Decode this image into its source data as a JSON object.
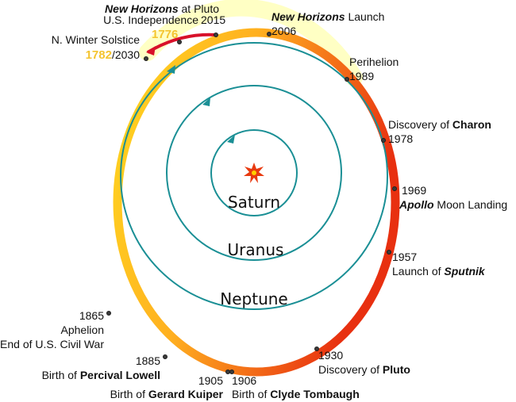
{
  "colors": {
    "orbit": "#1a8f95",
    "pluto_orbit_start": "#ffd820",
    "pluto_orbit_mid": "#ffb020",
    "pluto_orbit_end": "#e83010",
    "glow": "#ffffb0",
    "sun": "#e83a10",
    "arc_red": "#d8102a",
    "gold_text": "#f4c430"
  },
  "planets": {
    "saturn": "Saturn",
    "uranus": "Uranus",
    "neptune": "Neptune"
  },
  "events": {
    "new_horizons_pluto": {
      "title_italic": "New Horizons",
      "title_rest": " at Pluto",
      "year": "2015"
    },
    "independence": {
      "label": "U.S. Independence",
      "year": "1776"
    },
    "winter_solstice": {
      "label": "N. Winter Solstice",
      "year_gold": "1782",
      "year_rest": "/2030"
    },
    "nh_launch": {
      "title_italic": "New Horizons",
      "title_rest": " Launch",
      "year": "2006"
    },
    "perihelion": {
      "label": "Perihelion",
      "year": "1989"
    },
    "charon": {
      "prefix": "Discovery of ",
      "bold": "Charon",
      "year": "1978"
    },
    "apollo": {
      "year": "1969",
      "title_italic": "Apollo",
      "title_rest": " Moon Landing"
    },
    "sputnik": {
      "year": "1957",
      "prefix": "Launch of ",
      "bold": "Sputnik"
    },
    "pluto_discovery": {
      "year": "1930",
      "prefix": "Discovery of ",
      "bold": "Pluto"
    },
    "aphelion": {
      "year": "1865",
      "label": "Aphelion",
      "sub": "End of U.S. Civil War"
    },
    "lowell": {
      "year": "1885",
      "prefix": "Birth of ",
      "bold": "Percival Lowell"
    },
    "kuiper": {
      "year": "1905",
      "prefix": "Birth of ",
      "bold": "Gerard Kuiper"
    },
    "tombaugh": {
      "year": "1906",
      "prefix": "Birth of ",
      "bold": "Clyde Tombaugh"
    }
  }
}
